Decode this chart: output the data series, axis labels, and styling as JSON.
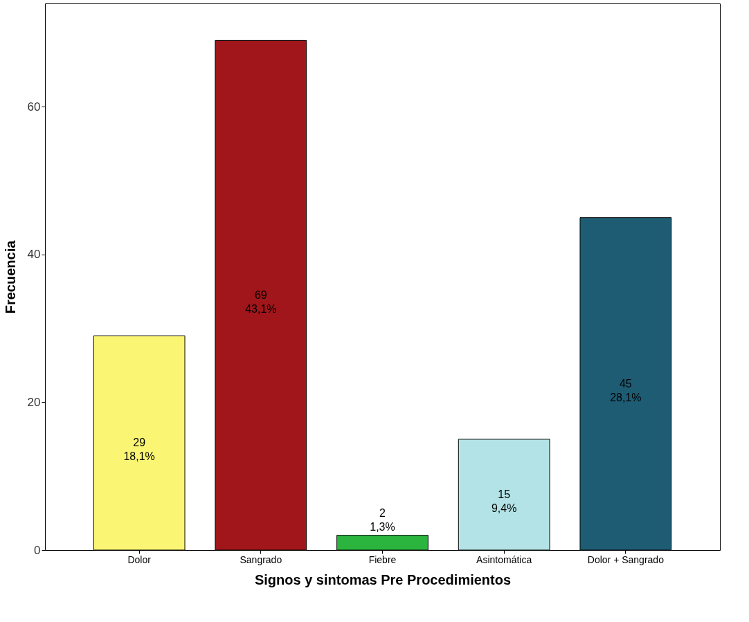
{
  "chart_data": {
    "type": "bar",
    "xlabel": "Signos y sintomas Pre Procedimientos",
    "ylabel": "Frecuencia",
    "categories": [
      "Dolor",
      "Sangrado",
      "Fiebre",
      "Asintomática",
      "Dolor + Sangrado"
    ],
    "values": [
      29,
      69,
      2,
      15,
      45
    ],
    "colors": [
      "#fbf574",
      "#a0161a",
      "#2bb53e",
      "#b3e3e6",
      "#1e5c73"
    ],
    "value_labels": [
      "29\n18,1%",
      "69\n43,1%",
      "2\n1,3%",
      "15\n9,4%",
      "45\n28,1%"
    ],
    "ylim": [
      0,
      74
    ],
    "yticks": [
      0,
      20,
      40,
      60
    ],
    "grid": false,
    "legend": false
  }
}
